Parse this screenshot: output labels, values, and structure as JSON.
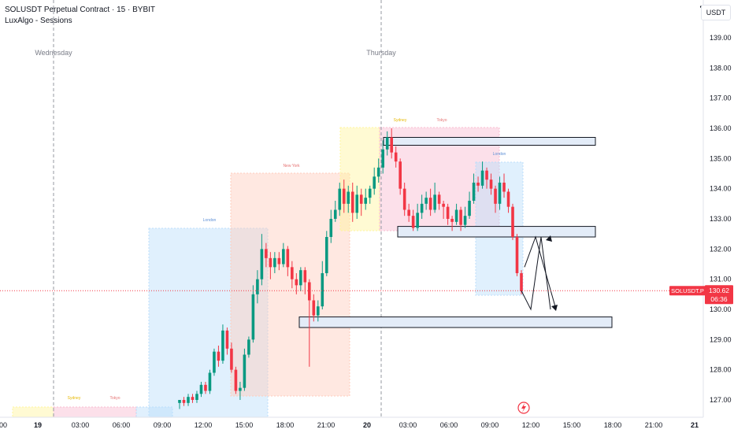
{
  "header": {
    "symbol_title": "SOLUSDT Perpetual Contract · 15 · BYBIT",
    "indicator": "LuxAlgo - Sessions"
  },
  "currency_button": "USDT",
  "price_axis": {
    "ticks": [
      "139.00",
      "138.00",
      "137.00",
      "136.00",
      "135.00",
      "134.00",
      "133.00",
      "132.00",
      "131.00",
      "130.00",
      "129.00",
      "128.00",
      "127.00"
    ]
  },
  "time_axis": {
    "ticks": [
      "00",
      "19",
      "03:00",
      "06:00",
      "09:00",
      "12:00",
      "15:00",
      "18:00",
      "21:00",
      "20",
      "03:00",
      "06:00",
      "09:00",
      "12:00",
      "15:00",
      "18:00",
      "21:00",
      "21"
    ]
  },
  "day_labels": [
    "Wednesday",
    "Thursday"
  ],
  "sessions": [
    {
      "name": "Sydney",
      "color": "#fff59d"
    },
    {
      "name": "Tokyo",
      "color": "#f8bbd0"
    },
    {
      "name": "London",
      "color": "#bbdefb"
    },
    {
      "name": "New York",
      "color": "#ffccbc"
    },
    {
      "name": "Sydney",
      "color": "#fff59d"
    },
    {
      "name": "Tokyo",
      "color": "#f8bbd0"
    },
    {
      "name": "London",
      "color": "#bbdefb"
    }
  ],
  "last_price": {
    "label": "SOLUSDT.P",
    "price": "130.62",
    "countdown": "06:36"
  },
  "colors": {
    "up": "#089981",
    "down": "#f23645",
    "zone_fill": "#e3ecf8"
  },
  "chart_data": {
    "type": "candlestick",
    "ylim": [
      126.8,
      139.6
    ],
    "zones": [
      {
        "low": 135.55,
        "high": 135.7
      },
      {
        "low": 132.4,
        "high": 132.75
      },
      {
        "low": 129.4,
        "high": 129.75
      }
    ],
    "candles": [
      [
        126.9,
        127.0,
        126.7,
        127.0
      ],
      [
        127.0,
        126.9,
        126.8,
        127.1
      ],
      [
        126.9,
        127.1,
        126.8,
        127.2
      ],
      [
        127.1,
        127.0,
        126.9,
        127.2
      ],
      [
        127.0,
        127.2,
        126.9,
        127.3
      ],
      [
        127.2,
        127.5,
        127.1,
        127.6
      ],
      [
        127.5,
        127.3,
        127.2,
        127.6
      ],
      [
        127.3,
        127.9,
        127.2,
        128.0
      ],
      [
        127.9,
        128.6,
        127.8,
        128.7
      ],
      [
        128.6,
        128.3,
        128.1,
        128.8
      ],
      [
        128.3,
        129.3,
        128.2,
        129.5
      ],
      [
        129.3,
        128.7,
        128.5,
        129.4
      ],
      [
        128.7,
        128.0,
        127.9,
        128.9
      ],
      [
        128.0,
        127.3,
        127.2,
        128.1
      ],
      [
        127.3,
        127.4,
        127.0,
        127.6
      ],
      [
        127.4,
        128.5,
        127.3,
        128.7
      ],
      [
        128.5,
        129.0,
        128.4,
        129.1
      ],
      [
        129.0,
        130.5,
        128.9,
        130.8
      ],
      [
        130.5,
        131.0,
        130.2,
        131.3
      ],
      [
        131.0,
        132.0,
        130.8,
        132.5
      ],
      [
        132.0,
        131.7,
        131.4,
        132.2
      ],
      [
        131.7,
        131.4,
        131.0,
        131.9
      ],
      [
        131.4,
        131.7,
        131.2,
        131.9
      ],
      [
        131.7,
        131.5,
        131.3,
        131.9
      ],
      [
        131.5,
        132.0,
        131.4,
        132.2
      ],
      [
        132.0,
        131.4,
        131.1,
        132.1
      ],
      [
        131.4,
        131.0,
        130.7,
        131.6
      ],
      [
        131.0,
        130.8,
        130.5,
        131.2
      ],
      [
        130.8,
        131.3,
        130.6,
        131.4
      ],
      [
        131.3,
        130.9,
        130.5,
        131.4
      ],
      [
        130.9,
        130.3,
        128.1,
        131.0
      ],
      [
        130.3,
        129.8,
        129.6,
        130.5
      ],
      [
        129.8,
        130.1,
        129.6,
        130.3
      ],
      [
        130.1,
        131.2,
        130.0,
        131.6
      ],
      [
        131.2,
        132.4,
        131.1,
        132.6
      ],
      [
        132.4,
        133.0,
        132.2,
        133.3
      ],
      [
        133.0,
        133.3,
        132.9,
        133.6
      ],
      [
        133.3,
        134.0,
        133.1,
        134.2
      ],
      [
        134.0,
        133.5,
        133.2,
        134.3
      ],
      [
        133.5,
        133.9,
        133.2,
        134.1
      ],
      [
        133.9,
        133.2,
        132.9,
        134.2
      ],
      [
        133.2,
        133.8,
        133.0,
        134.1
      ],
      [
        133.8,
        133.5,
        133.1,
        134.0
      ],
      [
        133.5,
        133.7,
        133.3,
        134.0
      ],
      [
        133.7,
        134.0,
        133.5,
        134.1
      ],
      [
        134.0,
        134.4,
        133.8,
        134.7
      ],
      [
        134.4,
        134.7,
        134.2,
        135.0
      ],
      [
        134.7,
        135.3,
        134.5,
        135.6
      ],
      [
        135.3,
        135.7,
        135.1,
        135.9
      ],
      [
        135.7,
        135.2,
        135.0,
        136.0
      ],
      [
        135.2,
        134.9,
        134.7,
        135.4
      ],
      [
        134.9,
        134.0,
        133.8,
        135.0
      ],
      [
        134.0,
        133.3,
        133.1,
        134.2
      ],
      [
        133.3,
        133.1,
        132.9,
        133.5
      ],
      [
        133.1,
        132.7,
        132.6,
        133.3
      ],
      [
        132.7,
        133.2,
        132.6,
        133.5
      ],
      [
        133.2,
        133.5,
        133.0,
        133.8
      ],
      [
        133.5,
        133.7,
        133.3,
        133.9
      ],
      [
        133.7,
        133.3,
        133.1,
        134.0
      ],
      [
        133.3,
        133.8,
        133.2,
        134.2
      ],
      [
        133.8,
        133.5,
        133.3,
        133.9
      ],
      [
        133.5,
        133.4,
        133.0,
        133.6
      ],
      [
        133.4,
        133.0,
        132.8,
        133.5
      ],
      [
        133.0,
        132.9,
        132.6,
        133.1
      ],
      [
        132.9,
        133.3,
        132.8,
        133.5
      ],
      [
        133.3,
        132.8,
        132.6,
        133.4
      ],
      [
        132.8,
        133.1,
        132.7,
        133.4
      ],
      [
        133.1,
        133.6,
        133.0,
        133.9
      ],
      [
        133.6,
        134.2,
        133.5,
        134.5
      ],
      [
        134.2,
        134.1,
        133.9,
        134.4
      ],
      [
        134.1,
        134.6,
        134.0,
        134.9
      ],
      [
        134.6,
        134.3,
        134.0,
        134.7
      ],
      [
        134.3,
        134.0,
        133.8,
        134.5
      ],
      [
        134.0,
        133.5,
        133.2,
        134.1
      ],
      [
        133.5,
        134.2,
        133.3,
        134.4
      ],
      [
        134.2,
        133.9,
        133.7,
        134.5
      ],
      [
        133.9,
        133.4,
        133.2,
        134.0
      ],
      [
        133.4,
        132.4,
        132.3,
        133.5
      ],
      [
        132.4,
        131.2,
        131.1,
        132.5
      ],
      [
        131.2,
        130.6,
        130.5,
        131.3
      ]
    ],
    "projection_path": [
      132.4,
      130.0,
      132.4,
      130.0
    ]
  }
}
